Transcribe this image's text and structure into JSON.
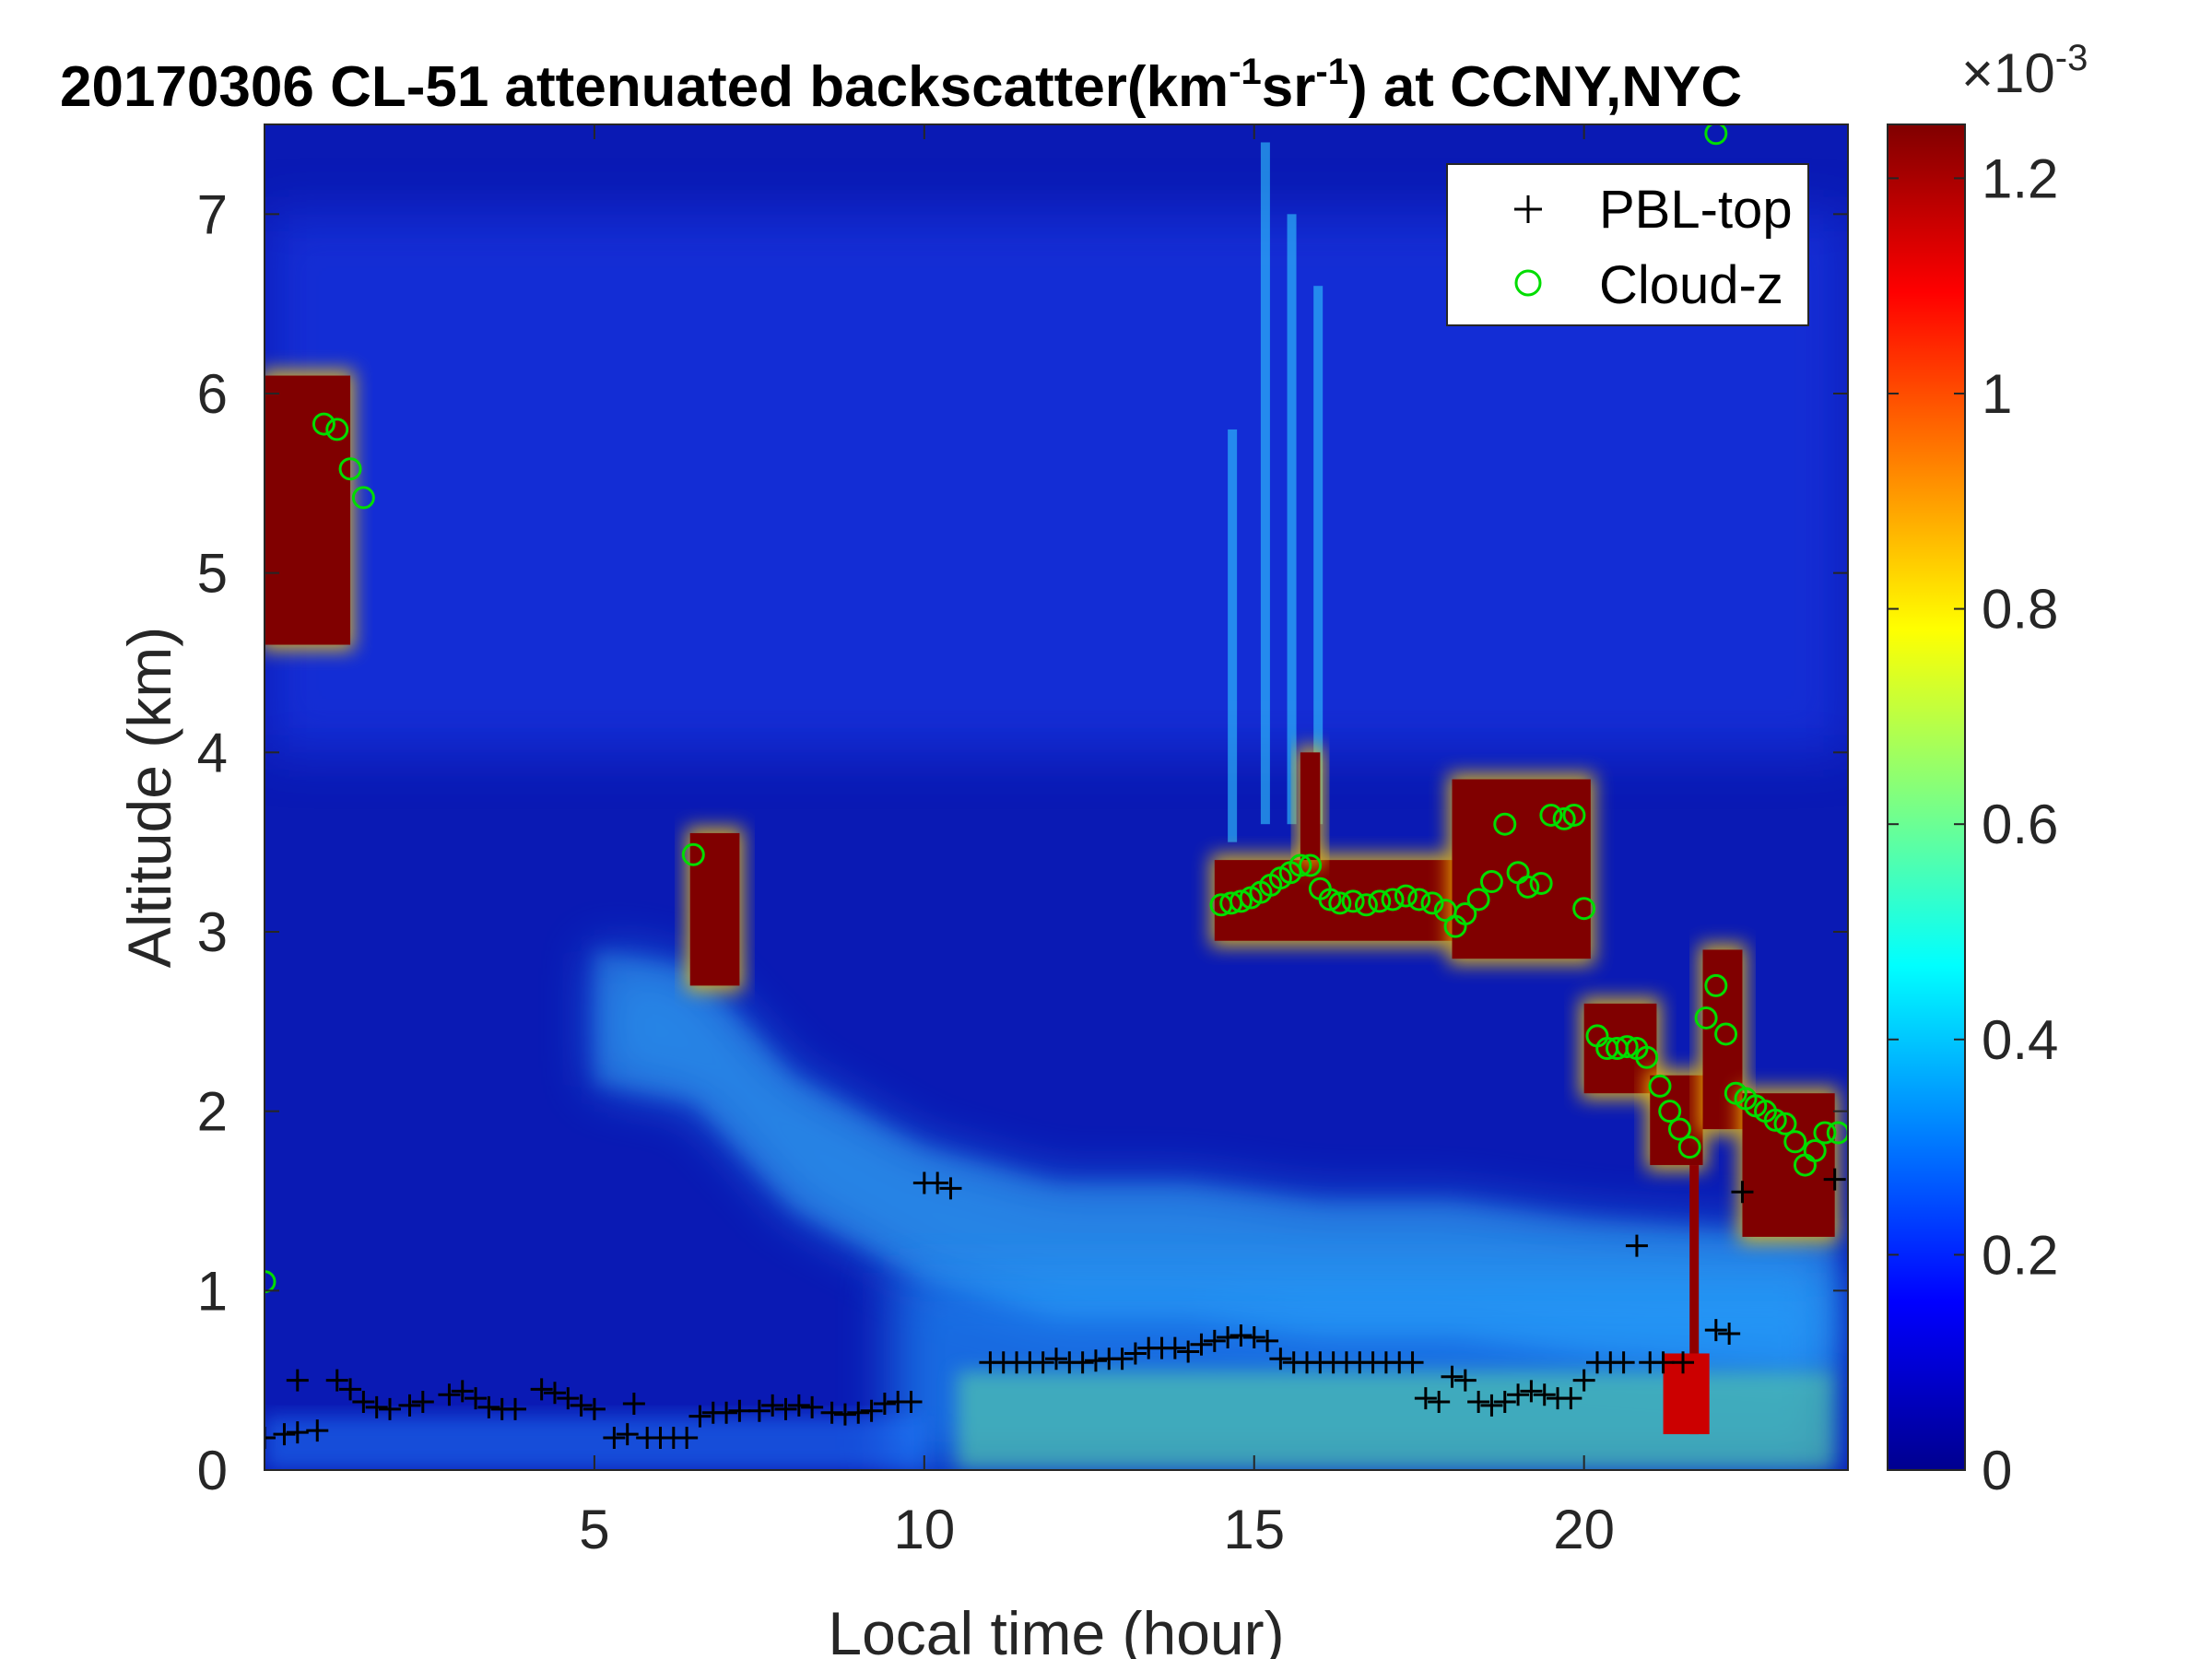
{
  "chart_data": {
    "type": "heatmap",
    "title": {
      "part1": "20170306  CL-51 attenuated backscatter(km",
      "sup1": "-1",
      "part2": "sr",
      "sup2": "-1",
      "part3": ") at CCNY,NYC"
    },
    "xlabel": "Local time (hour)",
    "ylabel": "Altitude (km)",
    "xlim": [
      0,
      24
    ],
    "ylim": [
      0,
      7.5
    ],
    "xticks": [
      "5",
      "10",
      "15",
      "20"
    ],
    "xtick_values": [
      5,
      10,
      15,
      20
    ],
    "yticks": [
      "0",
      "1",
      "2",
      "3",
      "4",
      "5",
      "6",
      "7"
    ],
    "ytick_values": [
      0,
      1,
      2,
      3,
      4,
      5,
      6,
      7
    ],
    "colorbar": {
      "clim": [
        0,
        0.00125
      ],
      "ticks": [
        "0",
        "0.2",
        "0.4",
        "0.6",
        "0.8",
        "1",
        "1.2"
      ],
      "tick_values": [
        0,
        0.2,
        0.4,
        0.6,
        0.8,
        1.0,
        1.2
      ],
      "exponent_base": "×10",
      "exponent": "-3",
      "colormap": "jet"
    },
    "legend": {
      "placement": "top-right",
      "entries": [
        {
          "name": "PBL-top",
          "marker": "+",
          "color": "#000000"
        },
        {
          "name": "Cloud-z",
          "marker": "o",
          "color": "#00dd00"
        }
      ]
    },
    "series": [
      {
        "name": "PBL-top",
        "points": [
          [
            0.0,
            0.18
          ],
          [
            0.3,
            0.2
          ],
          [
            0.5,
            0.21
          ],
          [
            0.5,
            0.5
          ],
          [
            0.8,
            0.22
          ],
          [
            1.1,
            0.5
          ],
          [
            1.3,
            0.45
          ],
          [
            1.5,
            0.38
          ],
          [
            1.7,
            0.35
          ],
          [
            1.9,
            0.34
          ],
          [
            2.2,
            0.36
          ],
          [
            2.4,
            0.38
          ],
          [
            2.8,
            0.42
          ],
          [
            3.0,
            0.44
          ],
          [
            3.2,
            0.4
          ],
          [
            3.4,
            0.35
          ],
          [
            3.6,
            0.34
          ],
          [
            3.8,
            0.34
          ],
          [
            4.2,
            0.45
          ],
          [
            4.4,
            0.43
          ],
          [
            4.6,
            0.4
          ],
          [
            4.8,
            0.36
          ],
          [
            5.0,
            0.34
          ],
          [
            5.3,
            0.18
          ],
          [
            5.5,
            0.2
          ],
          [
            5.6,
            0.37
          ],
          [
            5.8,
            0.18
          ],
          [
            6.0,
            0.18
          ],
          [
            6.2,
            0.18
          ],
          [
            6.4,
            0.18
          ],
          [
            6.6,
            0.3
          ],
          [
            6.8,
            0.32
          ],
          [
            7.0,
            0.32
          ],
          [
            7.2,
            0.33
          ],
          [
            7.5,
            0.33
          ],
          [
            7.7,
            0.36
          ],
          [
            7.9,
            0.34
          ],
          [
            8.1,
            0.36
          ],
          [
            8.3,
            0.35
          ],
          [
            8.6,
            0.32
          ],
          [
            8.8,
            0.31
          ],
          [
            9.0,
            0.32
          ],
          [
            9.2,
            0.33
          ],
          [
            9.4,
            0.37
          ],
          [
            9.6,
            0.38
          ],
          [
            9.8,
            0.38
          ],
          [
            10.0,
            1.6
          ],
          [
            10.2,
            1.6
          ],
          [
            10.4,
            1.57
          ],
          [
            11.0,
            0.6
          ],
          [
            11.2,
            0.6
          ],
          [
            11.4,
            0.6
          ],
          [
            11.6,
            0.6
          ],
          [
            11.8,
            0.6
          ],
          [
            12.0,
            0.62
          ],
          [
            12.2,
            0.6
          ],
          [
            12.4,
            0.6
          ],
          [
            12.6,
            0.61
          ],
          [
            12.8,
            0.62
          ],
          [
            13.0,
            0.62
          ],
          [
            13.2,
            0.65
          ],
          [
            13.4,
            0.68
          ],
          [
            13.6,
            0.68
          ],
          [
            13.8,
            0.68
          ],
          [
            14.0,
            0.66
          ],
          [
            14.2,
            0.7
          ],
          [
            14.4,
            0.72
          ],
          [
            14.6,
            0.74
          ],
          [
            14.8,
            0.75
          ],
          [
            15.0,
            0.74
          ],
          [
            15.2,
            0.72
          ],
          [
            15.4,
            0.62
          ],
          [
            15.6,
            0.6
          ],
          [
            15.8,
            0.6
          ],
          [
            16.0,
            0.6
          ],
          [
            16.2,
            0.6
          ],
          [
            16.4,
            0.6
          ],
          [
            16.6,
            0.6
          ],
          [
            16.8,
            0.6
          ],
          [
            17.0,
            0.6
          ],
          [
            17.2,
            0.6
          ],
          [
            17.4,
            0.6
          ],
          [
            17.6,
            0.4
          ],
          [
            17.8,
            0.38
          ],
          [
            18.0,
            0.52
          ],
          [
            18.2,
            0.5
          ],
          [
            18.4,
            0.38
          ],
          [
            18.6,
            0.36
          ],
          [
            18.8,
            0.38
          ],
          [
            19.0,
            0.42
          ],
          [
            19.2,
            0.44
          ],
          [
            19.4,
            0.42
          ],
          [
            19.6,
            0.4
          ],
          [
            19.8,
            0.4
          ],
          [
            20.0,
            0.5
          ],
          [
            20.2,
            0.6
          ],
          [
            20.4,
            0.6
          ],
          [
            20.6,
            0.6
          ],
          [
            20.8,
            1.25
          ],
          [
            21.0,
            0.6
          ],
          [
            21.2,
            0.6
          ],
          [
            21.5,
            0.6
          ],
          [
            22.0,
            0.78
          ],
          [
            22.2,
            0.76
          ],
          [
            22.4,
            1.55
          ],
          [
            23.8,
            1.62
          ]
        ]
      },
      {
        "name": "Cloud-z",
        "points": [
          [
            0.0,
            1.05
          ],
          [
            0.9,
            5.83
          ],
          [
            1.1,
            5.8
          ],
          [
            1.3,
            5.58
          ],
          [
            1.5,
            5.42
          ],
          [
            6.5,
            3.43
          ],
          [
            14.5,
            3.15
          ],
          [
            14.65,
            3.16
          ],
          [
            14.8,
            3.17
          ],
          [
            14.95,
            3.19
          ],
          [
            15.1,
            3.22
          ],
          [
            15.25,
            3.26
          ],
          [
            15.4,
            3.3
          ],
          [
            15.55,
            3.33
          ],
          [
            15.7,
            3.37
          ],
          [
            15.85,
            3.37
          ],
          [
            16.0,
            3.24
          ],
          [
            16.15,
            3.18
          ],
          [
            16.3,
            3.16
          ],
          [
            16.5,
            3.17
          ],
          [
            16.7,
            3.15
          ],
          [
            16.9,
            3.17
          ],
          [
            17.1,
            3.18
          ],
          [
            17.3,
            3.2
          ],
          [
            17.5,
            3.18
          ],
          [
            17.7,
            3.16
          ],
          [
            17.9,
            3.12
          ],
          [
            18.05,
            3.03
          ],
          [
            18.2,
            3.1
          ],
          [
            18.4,
            3.18
          ],
          [
            18.6,
            3.28
          ],
          [
            18.8,
            3.6
          ],
          [
            19.0,
            3.33
          ],
          [
            19.15,
            3.25
          ],
          [
            19.35,
            3.27
          ],
          [
            19.5,
            3.65
          ],
          [
            19.7,
            3.63
          ],
          [
            19.85,
            3.65
          ],
          [
            20.0,
            3.13
          ],
          [
            20.2,
            2.42
          ],
          [
            20.35,
            2.35
          ],
          [
            20.5,
            2.35
          ],
          [
            20.65,
            2.36
          ],
          [
            20.8,
            2.35
          ],
          [
            20.95,
            2.3
          ],
          [
            21.15,
            2.14
          ],
          [
            21.3,
            2.0
          ],
          [
            21.45,
            1.9
          ],
          [
            21.6,
            1.8
          ],
          [
            21.85,
            2.52
          ],
          [
            22.0,
            2.7
          ],
          [
            22.15,
            2.43
          ],
          [
            22.3,
            2.1
          ],
          [
            22.45,
            2.07
          ],
          [
            22.6,
            2.03
          ],
          [
            22.75,
            2.0
          ],
          [
            22.9,
            1.95
          ],
          [
            23.05,
            1.93
          ],
          [
            23.2,
            1.83
          ],
          [
            23.35,
            1.7
          ],
          [
            23.5,
            1.78
          ],
          [
            23.65,
            1.88
          ],
          [
            23.85,
            1.88
          ],
          [
            22.0,
            7.45
          ]
        ]
      }
    ],
    "features": [
      {
        "kind": "cloud",
        "x": [
          0.0,
          1.3
        ],
        "bottom": 4.6,
        "top": 6.1
      },
      {
        "kind": "cloud",
        "x": [
          6.45,
          7.2
        ],
        "bottom": 2.7,
        "top": 3.55
      },
      {
        "kind": "cloud",
        "x": [
          14.4,
          18.0
        ],
        "bottom": 2.95,
        "top": 3.4
      },
      {
        "kind": "cloud",
        "x": [
          15.7,
          16.0
        ],
        "bottom": 3.4,
        "top": 4.0
      },
      {
        "kind": "cloud",
        "x": [
          18.0,
          20.1
        ],
        "bottom": 2.85,
        "top": 3.85
      },
      {
        "kind": "cloud",
        "x": [
          20.0,
          21.1
        ],
        "bottom": 2.1,
        "top": 2.6
      },
      {
        "kind": "cloud",
        "x": [
          21.0,
          21.8
        ],
        "bottom": 1.7,
        "top": 2.2
      },
      {
        "kind": "cloud",
        "x": [
          21.8,
          22.4
        ],
        "bottom": 1.9,
        "top": 2.9
      },
      {
        "kind": "cloud",
        "x": [
          22.4,
          23.8
        ],
        "bottom": 1.3,
        "top": 2.1
      },
      {
        "kind": "aerosol-layer",
        "x": [
          5.0,
          23.8
        ],
        "note": "elevated aerosol layer descending from ~2.8 km to ~1.3 km"
      },
      {
        "kind": "surface-layer",
        "x": [
          9.5,
          23.8
        ],
        "bottom": 0.0,
        "top": 0.6
      }
    ]
  }
}
